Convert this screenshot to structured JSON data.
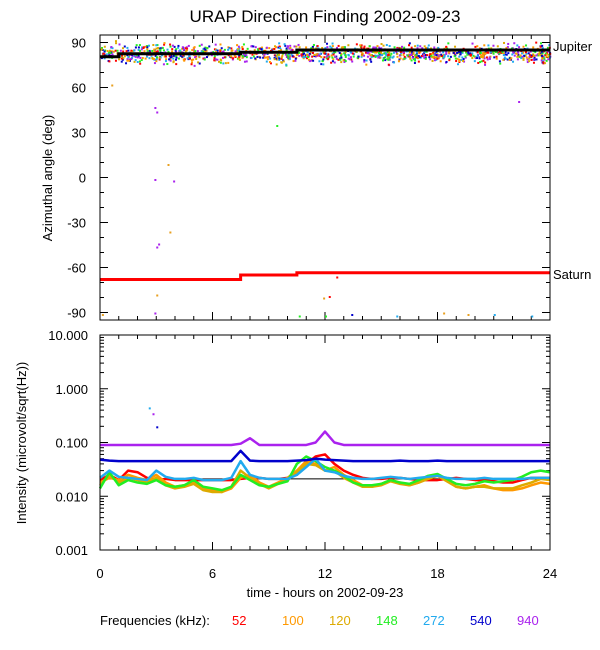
{
  "chart_data": [
    {
      "type": "scatter",
      "panel": "direction",
      "title": "URAP Direction Finding  2002-09-23",
      "ylabel": "Azimuthal angle (deg)",
      "xlim": [
        0,
        24
      ],
      "ylim": [
        -95,
        95
      ],
      "yticks": [
        "90",
        "60",
        "30",
        "0",
        "-30",
        "-60",
        "-90"
      ],
      "ytick_values": [
        90,
        60,
        30,
        0,
        -30,
        -60,
        -90
      ],
      "reference_lines": [
        {
          "label": "Jupiter",
          "color": "#000000",
          "segments": [
            [
              0,
              80.5
            ],
            [
              1,
              80.5
            ],
            [
              1,
              82.5
            ],
            [
              7.5,
              82.5
            ],
            [
              7.5,
              83.5
            ],
            [
              10.5,
              83.5
            ],
            [
              10.5,
              85
            ],
            [
              24,
              85
            ]
          ]
        },
        {
          "label": "Saturn",
          "color": "#ff0000",
          "segments": [
            [
              0,
              -68
            ],
            [
              7.5,
              -68
            ],
            [
              7.5,
              -65
            ],
            [
              10.5,
              -65
            ],
            [
              10.5,
              -63.5
            ],
            [
              24,
              -63.5
            ]
          ]
        }
      ],
      "scatter_band": {
        "center": 83,
        "spread": 5,
        "note": "dense points near Jupiter direction for all frequencies"
      },
      "outliers": [
        {
          "x": 2.9,
          "y": 47,
          "color": "#aa22ee"
        },
        {
          "x": 3.0,
          "y": 44,
          "color": "#aa22ee"
        },
        {
          "x": 2.9,
          "y": -1,
          "color": "#aa22ee"
        },
        {
          "x": 3.9,
          "y": -2,
          "color": "#aa22ee"
        },
        {
          "x": 3.0,
          "y": -46,
          "color": "#aa22ee"
        },
        {
          "x": 3.1,
          "y": -44,
          "color": "#aa22ee"
        },
        {
          "x": 22.3,
          "y": 51,
          "color": "#aa22ee"
        },
        {
          "x": 9.4,
          "y": 35,
          "color": "#22ee22"
        },
        {
          "x": 0.6,
          "y": 62,
          "color": "#e8a020"
        },
        {
          "x": 3.6,
          "y": 9,
          "color": "#e8a020"
        },
        {
          "x": 3.7,
          "y": -36,
          "color": "#e8a020"
        },
        {
          "x": 3.0,
          "y": -78,
          "color": "#e8a020"
        },
        {
          "x": 12.6,
          "y": -66,
          "color": "#ff0000"
        },
        {
          "x": 12.2,
          "y": -79,
          "color": "#ff0000"
        },
        {
          "x": 11.9,
          "y": -80,
          "color": "#e8a020"
        },
        {
          "x": 12.0,
          "y": -92,
          "color": "#22ee22"
        },
        {
          "x": 13.4,
          "y": -91,
          "color": "#0000cc"
        },
        {
          "x": 15.8,
          "y": -92,
          "color": "#22aaee"
        },
        {
          "x": 18.3,
          "y": -90,
          "color": "#e8a020"
        },
        {
          "x": 21.0,
          "y": -91,
          "color": "#22aaee"
        },
        {
          "x": 23.0,
          "y": -92,
          "color": "#22aaee"
        },
        {
          "x": 0.1,
          "y": -91,
          "color": "#e8a020"
        },
        {
          "x": 2.9,
          "y": -90,
          "color": "#aa22ee"
        },
        {
          "x": 10.6,
          "y": -92,
          "color": "#22ee22"
        },
        {
          "x": 19.6,
          "y": -91,
          "color": "#e8a020"
        }
      ]
    },
    {
      "type": "line",
      "panel": "intensity",
      "ylabel": "Intensity (microvolt/sqrt(Hz))",
      "xlabel": "time - hours on 2002-09-23",
      "xlim": [
        0,
        24
      ],
      "xticks": [
        "0",
        "6",
        "12",
        "18",
        "24"
      ],
      "xtick_values": [
        0,
        6,
        12,
        18,
        24
      ],
      "ylog": true,
      "ylim": [
        0.001,
        10
      ],
      "yticks": [
        "10.000",
        "1.000",
        "0.100",
        "0.010",
        "0.001"
      ],
      "ytick_values": [
        10,
        1,
        0.1,
        0.01,
        0.001
      ],
      "x": [
        0,
        0.5,
        1,
        1.5,
        2,
        2.5,
        3,
        3.5,
        4,
        4.5,
        5,
        5.5,
        6,
        6.5,
        7,
        7.5,
        8,
        8.5,
        9,
        9.5,
        10,
        10.5,
        11,
        11.5,
        12,
        12.5,
        13,
        13.5,
        14,
        14.5,
        15,
        15.5,
        16,
        16.5,
        17,
        17.5,
        18,
        18.5,
        19,
        19.5,
        20,
        20.5,
        21,
        21.5,
        22,
        22.5,
        23,
        23.5,
        24
      ],
      "series": [
        {
          "name": "52",
          "color": "#ff0000",
          "values": [
            0.02,
            0.025,
            0.02,
            0.03,
            0.028,
            0.022,
            0.02,
            0.021,
            0.02,
            0.02,
            0.02,
            0.02,
            0.02,
            0.02,
            0.02,
            0.021,
            0.022,
            0.022,
            0.021,
            0.021,
            0.022,
            0.025,
            0.04,
            0.055,
            0.06,
            0.04,
            0.03,
            0.025,
            0.022,
            0.021,
            0.021,
            0.022,
            0.022,
            0.021,
            0.02,
            0.02,
            0.02,
            0.021,
            0.022,
            0.021,
            0.02,
            0.02,
            0.019,
            0.018,
            0.018,
            0.02,
            0.022,
            0.022,
            0.022
          ]
        },
        {
          "name": "100",
          "color": "#ff9900",
          "values": [
            0.018,
            0.022,
            0.02,
            0.025,
            0.022,
            0.02,
            0.025,
            0.018,
            0.015,
            0.016,
            0.018,
            0.014,
            0.013,
            0.012,
            0.014,
            0.022,
            0.025,
            0.018,
            0.015,
            0.018,
            0.022,
            0.03,
            0.045,
            0.04,
            0.03,
            0.035,
            0.025,
            0.02,
            0.016,
            0.015,
            0.017,
            0.02,
            0.018,
            0.016,
            0.018,
            0.022,
            0.025,
            0.02,
            0.015,
            0.014,
            0.015,
            0.016,
            0.014,
            0.013,
            0.013,
            0.014,
            0.016,
            0.018,
            0.017
          ]
        },
        {
          "name": "120",
          "color": "#ddaa00",
          "values": [
            0.016,
            0.025,
            0.018,
            0.022,
            0.02,
            0.018,
            0.022,
            0.016,
            0.014,
            0.015,
            0.017,
            0.013,
            0.012,
            0.012,
            0.015,
            0.03,
            0.022,
            0.017,
            0.014,
            0.017,
            0.02,
            0.028,
            0.04,
            0.038,
            0.03,
            0.03,
            0.022,
            0.018,
            0.015,
            0.015,
            0.016,
            0.019,
            0.017,
            0.016,
            0.018,
            0.021,
            0.024,
            0.019,
            0.015,
            0.014,
            0.015,
            0.015,
            0.014,
            0.014,
            0.014,
            0.016,
            0.018,
            0.021,
            0.02
          ]
        },
        {
          "name": "148",
          "color": "#22ee22",
          "values": [
            0.014,
            0.028,
            0.016,
            0.02,
            0.018,
            0.017,
            0.02,
            0.016,
            0.015,
            0.016,
            0.02,
            0.015,
            0.014,
            0.013,
            0.015,
            0.025,
            0.02,
            0.016,
            0.015,
            0.017,
            0.019,
            0.04,
            0.055,
            0.045,
            0.035,
            0.03,
            0.024,
            0.018,
            0.016,
            0.016,
            0.017,
            0.02,
            0.018,
            0.017,
            0.02,
            0.024,
            0.026,
            0.021,
            0.017,
            0.016,
            0.017,
            0.019,
            0.018,
            0.019,
            0.02,
            0.023,
            0.028,
            0.03,
            0.028
          ]
        },
        {
          "name": "272",
          "color": "#22aaee",
          "values": [
            0.022,
            0.03,
            0.023,
            0.022,
            0.021,
            0.02,
            0.03,
            0.023,
            0.021,
            0.021,
            0.022,
            0.02,
            0.02,
            0.02,
            0.022,
            0.045,
            0.025,
            0.022,
            0.021,
            0.021,
            0.021,
            0.025,
            0.035,
            0.05,
            0.03,
            0.028,
            0.024,
            0.022,
            0.021,
            0.021,
            0.022,
            0.023,
            0.022,
            0.021,
            0.022,
            0.023,
            0.024,
            0.022,
            0.021,
            0.021,
            0.021,
            0.022,
            0.021,
            0.021,
            0.021,
            0.021,
            0.022,
            0.022,
            0.022
          ]
        },
        {
          "name": "540",
          "color": "#0000cc",
          "values": [
            0.048,
            0.046,
            0.045,
            0.045,
            0.045,
            0.045,
            0.045,
            0.045,
            0.045,
            0.045,
            0.045,
            0.045,
            0.045,
            0.045,
            0.045,
            0.07,
            0.046,
            0.045,
            0.045,
            0.045,
            0.045,
            0.046,
            0.047,
            0.05,
            0.048,
            0.047,
            0.046,
            0.045,
            0.045,
            0.045,
            0.045,
            0.045,
            0.046,
            0.045,
            0.045,
            0.045,
            0.046,
            0.045,
            0.045,
            0.045,
            0.045,
            0.045,
            0.045,
            0.045,
            0.045,
            0.045,
            0.045,
            0.045,
            0.045
          ]
        },
        {
          "name": "940",
          "color": "#aa22ee",
          "values": [
            0.09,
            0.09,
            0.09,
            0.09,
            0.09,
            0.09,
            0.09,
            0.09,
            0.09,
            0.09,
            0.09,
            0.09,
            0.09,
            0.09,
            0.09,
            0.095,
            0.12,
            0.09,
            0.09,
            0.09,
            0.09,
            0.09,
            0.09,
            0.1,
            0.16,
            0.1,
            0.09,
            0.09,
            0.09,
            0.09,
            0.09,
            0.09,
            0.09,
            0.09,
            0.09,
            0.09,
            0.09,
            0.09,
            0.09,
            0.09,
            0.09,
            0.09,
            0.09,
            0.09,
            0.09,
            0.09,
            0.09,
            0.09,
            0.09
          ]
        }
      ],
      "spikes": [
        {
          "x": 2.6,
          "y": 0.45,
          "color": "#22aaee"
        },
        {
          "x": 2.8,
          "y": 0.35,
          "color": "#aa22ee"
        },
        {
          "x": 3.0,
          "y": 0.2,
          "color": "#0000cc"
        }
      ],
      "reference_lines": [
        {
          "y": 0.021,
          "color": "#000000"
        }
      ]
    }
  ],
  "legend": {
    "label": "Frequencies (kHz):",
    "items": [
      {
        "text": "52",
        "color": "#ff0000"
      },
      {
        "text": "100",
        "color": "#ff9900"
      },
      {
        "text": "120",
        "color": "#ddaa00"
      },
      {
        "text": "148",
        "color": "#22ee22"
      },
      {
        "text": "272",
        "color": "#22aaee"
      },
      {
        "text": "540",
        "color": "#0000cc"
      },
      {
        "text": "940",
        "color": "#aa22ee"
      }
    ]
  }
}
